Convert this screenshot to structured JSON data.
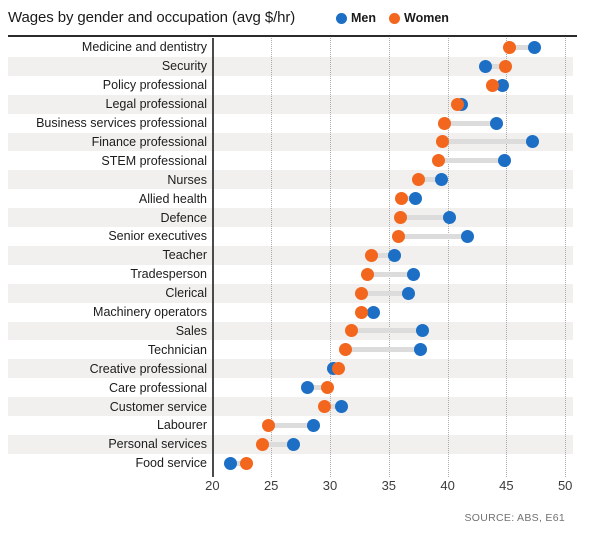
{
  "title": "Wages by gender and occupation (avg $/hr)",
  "legend": {
    "men_label": "Men",
    "women_label": "Women"
  },
  "source": "SOURCE: ABS, E61",
  "colors": {
    "men": "#1c6fc4",
    "women": "#f2661d",
    "stripe": "#f1f0ee",
    "connector": "#dcdcdc",
    "grid": "#ababab",
    "axis": "#4a4a4a",
    "rule": "#2b2b2b",
    "tick_text": "#3c3c3c",
    "source_text": "#717171"
  },
  "chart_data": {
    "type": "scatter",
    "variant": "dumbbell",
    "title": "Wages by gender and occupation (avg $/hr)",
    "xlabel": "",
    "ylabel": "",
    "xlim": [
      20,
      50
    ],
    "xticks": [
      20,
      25,
      30,
      35,
      40,
      45,
      50
    ],
    "grid": "vertical-dotted",
    "legend_position": "top",
    "categories": [
      "Medicine and dentistry",
      "Security",
      "Policy professional",
      "Legal professional",
      "Business services professional",
      "Finance professional",
      "STEM professional",
      "Nurses",
      "Allied health",
      "Defence",
      "Senior executives",
      "Teacher",
      "Tradesperson",
      "Clerical",
      "Machinery operators",
      "Sales",
      "Technician",
      "Creative professional",
      "Care professional",
      "Customer service",
      "Labourer",
      "Personal services",
      "Food service"
    ],
    "series": [
      {
        "name": "Men",
        "color": "#1c6fc4",
        "values": [
          47.4,
          43.2,
          44.7,
          41.2,
          44.2,
          47.2,
          44.8,
          39.5,
          37.3,
          40.2,
          41.7,
          35.5,
          37.1,
          36.7,
          33.7,
          37.9,
          37.7,
          30.3,
          28.1,
          31.0,
          28.6,
          26.9,
          21.5
        ]
      },
      {
        "name": "Women",
        "color": "#f2661d",
        "values": [
          45.3,
          44.9,
          43.8,
          40.8,
          39.7,
          39.6,
          39.2,
          37.5,
          36.1,
          36.0,
          35.8,
          33.5,
          33.2,
          32.7,
          32.7,
          31.8,
          31.3,
          30.7,
          29.8,
          29.5,
          24.8,
          24.3,
          22.9
        ]
      }
    ]
  }
}
